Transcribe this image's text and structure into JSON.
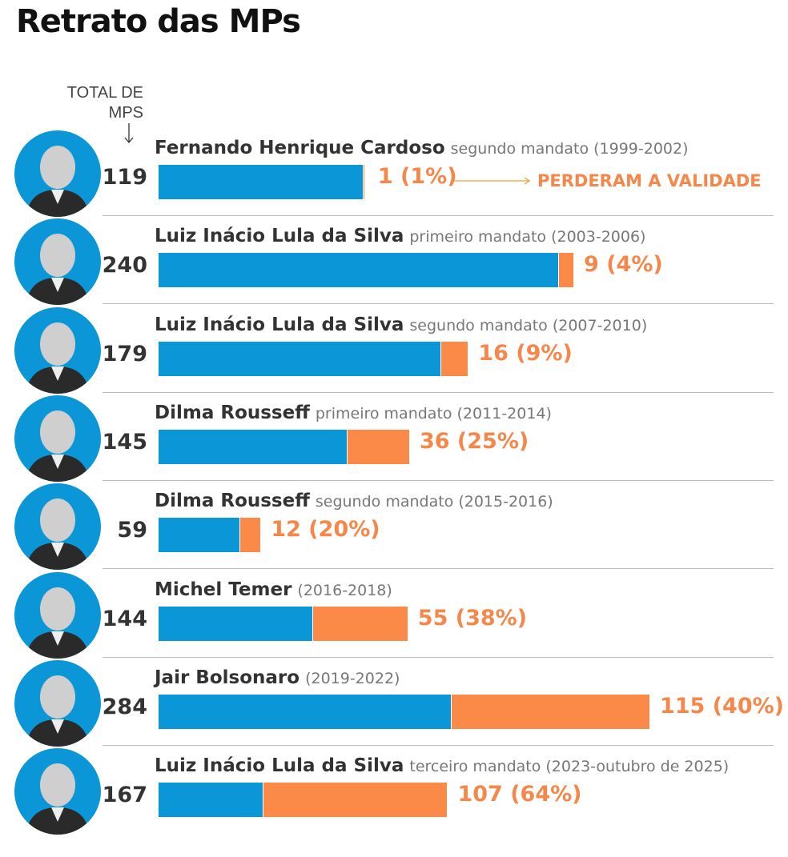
{
  "title": "Retrato das MPs",
  "total_label": "TOTAL DE MPS",
  "note": "PERDERAM A VALIDADE",
  "colors": {
    "valid": "#0a96d7",
    "lost": "#fb8a48",
    "avatar_ring": "#0b96d8"
  },
  "chart_data": {
    "type": "bar",
    "stacked": true,
    "orientation": "horizontal",
    "title": "Retrato das MPs",
    "series_note": "PERDERAM A VALIDADE",
    "rows": [
      {
        "name": "Fernando Henrique Cardoso",
        "term": "segundo mandato (1999-2002)",
        "total": 119,
        "lost": 1,
        "lost_label": "1 (1%)"
      },
      {
        "name": "Luiz Inácio Lula da Silva",
        "term": "primeiro mandato (2003-2006)",
        "total": 240,
        "lost": 9,
        "lost_label": "9 (4%)"
      },
      {
        "name": "Luiz Inácio Lula da Silva",
        "term": "segundo mandato (2007-2010)",
        "total": 179,
        "lost": 16,
        "lost_label": "16 (9%)"
      },
      {
        "name": "Dilma Rousseff",
        "term": "primeiro mandato (2011-2014)",
        "total": 145,
        "lost": 36,
        "lost_label": "36 (25%)"
      },
      {
        "name": "Dilma Rousseff",
        "term": "segundo mandato (2015-2016)",
        "total": 59,
        "lost": 12,
        "lost_label": "12 (20%)"
      },
      {
        "name": "Michel Temer",
        "term": "(2016-2018)",
        "total": 144,
        "lost": 55,
        "lost_label": "55 (38%)"
      },
      {
        "name": "Jair Bolsonaro",
        "term": "(2019-2022)",
        "total": 284,
        "lost": 115,
        "lost_label": "115 (40%)"
      },
      {
        "name": "Luiz Inácio Lula da Silva",
        "term": "terceiro mandato (2023-outubro de 2025)",
        "total": 167,
        "lost": 107,
        "lost_label": "107 (64%)"
      }
    ]
  }
}
